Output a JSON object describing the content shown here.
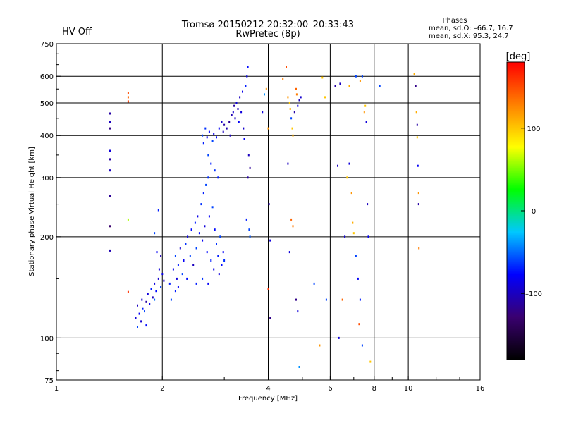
{
  "status": {
    "text": "HV Off",
    "color": "#cc1111"
  },
  "title": {
    "line1": "Tromsø 20150212 20:32:00–20:33:43",
    "line2": "RwPretec (8p)"
  },
  "stats": {
    "heading": "Phases",
    "line1": "mean, sd,O: –66.7, 16.7",
    "line2": "mean, sd,X:  95.3, 24.7"
  },
  "colorbar": {
    "label": "[deg]",
    "ticks": [
      {
        "label": "100",
        "value": 100
      },
      {
        "label": "0",
        "value": 0
      },
      {
        "label": "–100",
        "value": -100
      }
    ],
    "range": [
      -180,
      180
    ],
    "stops": [
      "#000000",
      "#3a0070",
      "#0000ff",
      "#00c8ff",
      "#00ff00",
      "#ffff00",
      "#ff8000",
      "#ff0000"
    ]
  },
  "chart_data": {
    "type": "scatter",
    "xlabel": "Frequency [MHz]",
    "ylabel": "Stationary phase Virtual Height [km]",
    "xscale": "log",
    "yscale": "log",
    "xlim": [
      1,
      16
    ],
    "ylim": [
      75,
      750
    ],
    "x_ticks": [
      {
        "value": 1,
        "label": "1"
      },
      {
        "value": 2,
        "label": "2"
      },
      {
        "value": 4,
        "label": "4"
      },
      {
        "value": 6,
        "label": "6"
      },
      {
        "value": 8,
        "label": "8"
      },
      {
        "value": 10,
        "label": "10"
      },
      {
        "value": 16,
        "label": "16"
      }
    ],
    "y_ticks": [
      {
        "value": 75,
        "label": "75"
      },
      {
        "value": 100,
        "label": "100"
      },
      {
        "value": 200,
        "label": "200"
      },
      {
        "value": 300,
        "label": "300"
      },
      {
        "value": 400,
        "label": "400"
      },
      {
        "value": 500,
        "label": "500"
      },
      {
        "value": 600,
        "label": "600"
      },
      {
        "value": 750,
        "label": "750"
      }
    ],
    "grid": true,
    "points": [
      [
        1.42,
        465,
        -110
      ],
      [
        1.42,
        440,
        -100
      ],
      [
        1.42,
        420,
        -120
      ],
      [
        1.42,
        360,
        -90
      ],
      [
        1.42,
        340,
        -110
      ],
      [
        1.42,
        315,
        -100
      ],
      [
        1.42,
        265,
        -115
      ],
      [
        1.42,
        215,
        -130
      ],
      [
        1.42,
        182,
        -105
      ],
      [
        1.6,
        535,
        150
      ],
      [
        1.6,
        520,
        140
      ],
      [
        1.6,
        505,
        155
      ],
      [
        1.6,
        225,
        60
      ],
      [
        1.6,
        137,
        160
      ],
      [
        1.68,
        115,
        -90
      ],
      [
        1.72,
        118,
        -80
      ],
      [
        1.7,
        125,
        -100
      ],
      [
        1.75,
        130,
        -95
      ],
      [
        1.76,
        122,
        -70
      ],
      [
        1.8,
        128,
        -110
      ],
      [
        1.82,
        135,
        -90
      ],
      [
        1.84,
        126,
        -85
      ],
      [
        1.86,
        140,
        -70
      ],
      [
        1.88,
        132,
        -100
      ],
      [
        1.9,
        145,
        -90
      ],
      [
        1.92,
        138,
        -75
      ],
      [
        1.95,
        150,
        -95
      ],
      [
        1.98,
        142,
        -60
      ],
      [
        2.0,
        155,
        -85
      ],
      [
        2.02,
        148,
        -100
      ],
      [
        1.7,
        108,
        -60
      ],
      [
        1.74,
        112,
        -95
      ],
      [
        1.78,
        120,
        -60
      ],
      [
        1.8,
        109,
        -75
      ],
      [
        1.9,
        130,
        -50
      ],
      [
        1.96,
        160,
        -90
      ],
      [
        1.98,
        175,
        -105
      ],
      [
        1.93,
        180,
        -80
      ],
      [
        1.9,
        205,
        -60
      ],
      [
        1.95,
        240,
        -70
      ],
      [
        2.1,
        145,
        -70
      ],
      [
        2.15,
        160,
        -80
      ],
      [
        2.18,
        175,
        -60
      ],
      [
        2.2,
        150,
        -90
      ],
      [
        2.22,
        165,
        -70
      ],
      [
        2.25,
        185,
        -95
      ],
      [
        2.3,
        170,
        -80
      ],
      [
        2.33,
        190,
        -65
      ],
      [
        2.36,
        200,
        -85
      ],
      [
        2.4,
        175,
        -60
      ],
      [
        2.42,
        210,
        -75
      ],
      [
        2.45,
        165,
        -100
      ],
      [
        2.48,
        220,
        -70
      ],
      [
        2.5,
        185,
        -60
      ],
      [
        2.52,
        230,
        -85
      ],
      [
        2.55,
        205,
        -75
      ],
      [
        2.58,
        250,
        -65
      ],
      [
        2.6,
        195,
        -80
      ],
      [
        2.62,
        270,
        -70
      ],
      [
        2.64,
        215,
        -90
      ],
      [
        2.66,
        285,
        -60
      ],
      [
        2.68,
        180,
        -75
      ],
      [
        2.7,
        300,
        -65
      ],
      [
        2.72,
        230,
        -80
      ],
      [
        2.75,
        170,
        -70
      ],
      [
        2.78,
        245,
        -60
      ],
      [
        2.8,
        160,
        -85
      ],
      [
        2.82,
        210,
        -75
      ],
      [
        2.85,
        190,
        -65
      ],
      [
        2.88,
        175,
        -70
      ],
      [
        2.9,
        155,
        -90
      ],
      [
        2.92,
        200,
        -60
      ],
      [
        2.95,
        165,
        -75
      ],
      [
        2.98,
        180,
        -80
      ],
      [
        3.0,
        170,
        -65
      ],
      [
        2.12,
        130,
        -60
      ],
      [
        2.18,
        138,
        -70
      ],
      [
        2.22,
        142,
        -80
      ],
      [
        2.28,
        155,
        -60
      ],
      [
        2.35,
        150,
        -75
      ],
      [
        2.5,
        145,
        -70
      ],
      [
        2.6,
        150,
        -65
      ],
      [
        2.7,
        145,
        -80
      ],
      [
        2.6,
        400,
        -60
      ],
      [
        2.62,
        380,
        -70
      ],
      [
        2.65,
        420,
        -65
      ],
      [
        2.68,
        395,
        -80
      ],
      [
        2.7,
        350,
        -60
      ],
      [
        2.72,
        410,
        -75
      ],
      [
        2.75,
        330,
        -70
      ],
      [
        2.78,
        385,
        -60
      ],
      [
        2.8,
        405,
        -85
      ],
      [
        2.82,
        315,
        -65
      ],
      [
        2.85,
        395,
        -75
      ],
      [
        2.88,
        300,
        -70
      ],
      [
        2.9,
        420,
        -80
      ],
      [
        2.95,
        440,
        -95
      ],
      [
        2.98,
        410,
        -100
      ],
      [
        3.0,
        430,
        -110
      ],
      [
        3.05,
        420,
        -105
      ],
      [
        3.1,
        440,
        -115
      ],
      [
        3.12,
        400,
        -100
      ],
      [
        3.15,
        460,
        -105
      ],
      [
        3.18,
        470,
        -95
      ],
      [
        3.2,
        490,
        -110
      ],
      [
        3.22,
        450,
        -100
      ],
      [
        3.25,
        500,
        -90
      ],
      [
        3.28,
        480,
        -105
      ],
      [
        3.3,
        440,
        -80
      ],
      [
        3.32,
        520,
        -100
      ],
      [
        3.35,
        470,
        -90
      ],
      [
        3.38,
        540,
        -85
      ],
      [
        3.4,
        420,
        -95
      ],
      [
        3.42,
        390,
        -80
      ],
      [
        3.45,
        560,
        -70
      ],
      [
        3.48,
        600,
        -80
      ],
      [
        3.5,
        640,
        -75
      ],
      [
        3.52,
        350,
        -100
      ],
      [
        3.55,
        320,
        -115
      ],
      [
        3.5,
        300,
        -110
      ],
      [
        3.47,
        225,
        -70
      ],
      [
        3.53,
        210,
        -60
      ],
      [
        3.55,
        200,
        -55
      ],
      [
        3.85,
        470,
        -90
      ],
      [
        3.9,
        530,
        -40
      ],
      [
        3.95,
        550,
        120
      ],
      [
        4.0,
        420,
        120
      ],
      [
        4.02,
        250,
        -110
      ],
      [
        4.05,
        195,
        -90
      ],
      [
        4.0,
        140,
        160
      ],
      [
        4.05,
        115,
        -120
      ],
      [
        4.4,
        590,
        130
      ],
      [
        4.5,
        640,
        150
      ],
      [
        4.55,
        520,
        120
      ],
      [
        4.6,
        500,
        100
      ],
      [
        4.62,
        480,
        110
      ],
      [
        4.65,
        450,
        -60
      ],
      [
        4.68,
        420,
        100
      ],
      [
        4.7,
        400,
        110
      ],
      [
        4.75,
        470,
        -110
      ],
      [
        4.8,
        550,
        140
      ],
      [
        4.82,
        530,
        130
      ],
      [
        4.85,
        490,
        -90
      ],
      [
        4.9,
        510,
        -100
      ],
      [
        4.95,
        520,
        -95
      ],
      [
        4.55,
        330,
        -100
      ],
      [
        4.65,
        225,
        140
      ],
      [
        4.7,
        215,
        130
      ],
      [
        4.6,
        180,
        -90
      ],
      [
        4.8,
        130,
        -120
      ],
      [
        4.9,
        82,
        -40
      ],
      [
        4.85,
        120,
        -90
      ],
      [
        5.4,
        145,
        -60
      ],
      [
        5.6,
        95,
        120
      ],
      [
        5.7,
        595,
        100
      ],
      [
        5.8,
        520,
        100
      ],
      [
        5.85,
        130,
        -60
      ],
      [
        6.3,
        325,
        -100
      ],
      [
        6.35,
        100,
        -90
      ],
      [
        6.5,
        130,
        140
      ],
      [
        6.6,
        200,
        -90
      ],
      [
        6.7,
        300,
        100
      ],
      [
        6.8,
        330,
        -90
      ],
      [
        6.9,
        270,
        120
      ],
      [
        6.95,
        220,
        110
      ],
      [
        7.0,
        205,
        100
      ],
      [
        7.1,
        175,
        -60
      ],
      [
        7.2,
        150,
        -80
      ],
      [
        7.25,
        110,
        150
      ],
      [
        7.3,
        130,
        -70
      ],
      [
        7.4,
        600,
        -60
      ],
      [
        7.5,
        470,
        120
      ],
      [
        7.55,
        490,
        100
      ],
      [
        7.6,
        440,
        -90
      ],
      [
        7.65,
        250,
        -100
      ],
      [
        7.7,
        200,
        -80
      ],
      [
        7.4,
        95,
        -60
      ],
      [
        7.8,
        85,
        100
      ],
      [
        8.3,
        560,
        -60
      ],
      [
        10.4,
        610,
        110
      ],
      [
        10.5,
        560,
        -120
      ],
      [
        10.55,
        470,
        110
      ],
      [
        10.6,
        430,
        -110
      ],
      [
        10.6,
        395,
        100
      ],
      [
        10.65,
        325,
        -80
      ],
      [
        10.7,
        270,
        120
      ],
      [
        10.7,
        250,
        -110
      ],
      [
        10.72,
        185,
        130
      ],
      [
        6.2,
        560,
        -110
      ],
      [
        6.4,
        570,
        -100
      ],
      [
        6.8,
        560,
        110
      ],
      [
        7.1,
        600,
        -60
      ],
      [
        7.3,
        580,
        120
      ]
    ]
  }
}
